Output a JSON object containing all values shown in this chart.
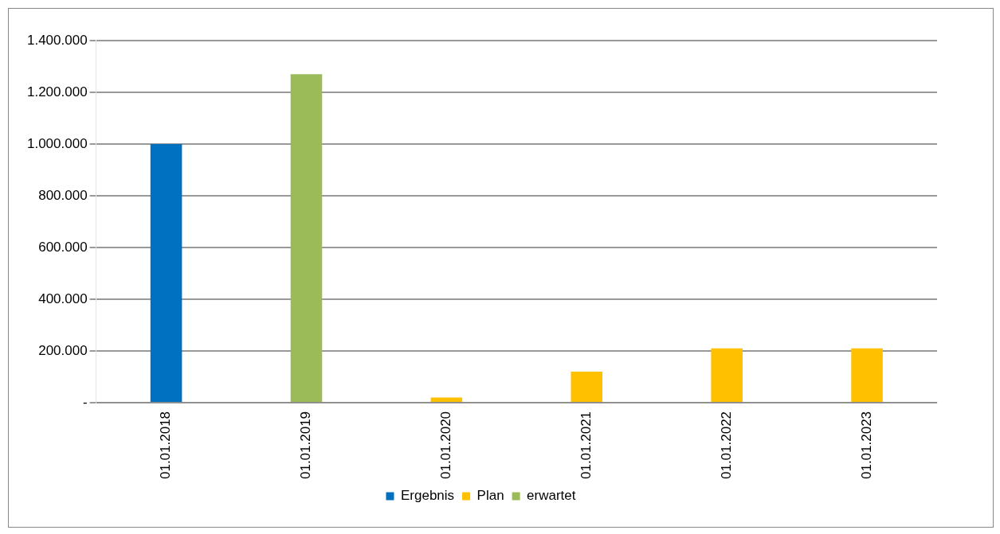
{
  "chart_data": {
    "type": "bar",
    "categories": [
      "01.01.2018",
      "01.01.2019",
      "01.01.2020",
      "01.01.2021",
      "01.01.2022",
      "01.01.2023"
    ],
    "series": [
      {
        "name": "Ergebnis",
        "color": "#0070c0",
        "values": [
          1000000,
          null,
          null,
          null,
          null,
          null
        ]
      },
      {
        "name": "Plan",
        "color": "#ffc000",
        "values": [
          null,
          null,
          20000,
          120000,
          210000,
          210000
        ]
      },
      {
        "name": "erwartet",
        "color": "#9bbb59",
        "values": [
          null,
          1270000,
          null,
          null,
          null,
          null
        ]
      }
    ],
    "ylim": [
      0,
      1400000
    ],
    "yticks": [
      {
        "value": 0,
        "label": "-"
      },
      {
        "value": 200000,
        "label": "200.000"
      },
      {
        "value": 400000,
        "label": "400.000"
      },
      {
        "value": 600000,
        "label": "600.000"
      },
      {
        "value": 800000,
        "label": "800.000"
      },
      {
        "value": 1000000,
        "label": "1.000.000"
      },
      {
        "value": 1200000,
        "label": "1.200.000"
      },
      {
        "value": 1400000,
        "label": "1.400.000"
      }
    ],
    "grid": "y",
    "legend": "bottom"
  }
}
